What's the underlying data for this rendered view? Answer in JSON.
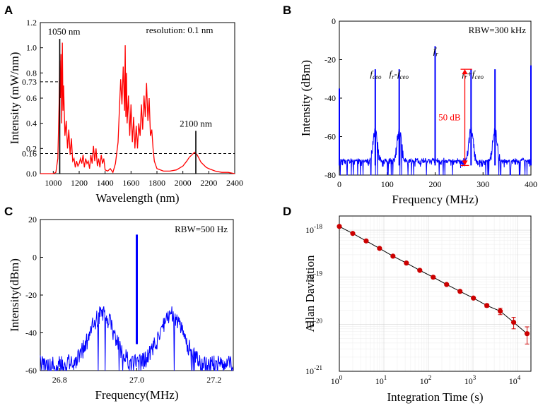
{
  "chart_data": [
    {
      "panel": "A",
      "type": "line",
      "xlabel": "Wavelength (nm)",
      "ylabel": "Intensity (mW/nm)",
      "xlim": [
        900,
        2400
      ],
      "ylim": [
        0,
        1.2
      ],
      "xticks": [
        1000,
        1200,
        1400,
        1600,
        1800,
        2000,
        2200,
        2400
      ],
      "xtick_labels": [
        "1000",
        "1200",
        "1400",
        "1600",
        "1800",
        "2000",
        "2200",
        "2400"
      ],
      "yticks": [
        0.0,
        0.2,
        0.4,
        0.6,
        0.8,
        1.0,
        1.2
      ],
      "ytick_labels": [
        "0.0",
        "0.2",
        "0.4",
        "0.6",
        "0.8",
        "1.0",
        "1.2"
      ],
      "extra_yticks": [
        0.16,
        0.73
      ],
      "extra_ytick_labels": [
        "0.16",
        "0.73"
      ],
      "series_color": "#ff0000",
      "x": [
        900,
        960,
        1000,
        1020,
        1035,
        1045,
        1050,
        1055,
        1060,
        1065,
        1070,
        1075,
        1080,
        1090,
        1100,
        1110,
        1120,
        1130,
        1140,
        1150,
        1160,
        1170,
        1180,
        1190,
        1200,
        1210,
        1220,
        1230,
        1240,
        1250,
        1260,
        1270,
        1280,
        1290,
        1300,
        1310,
        1320,
        1330,
        1340,
        1350,
        1360,
        1370,
        1380,
        1390,
        1400,
        1420,
        1440,
        1460,
        1480,
        1500,
        1510,
        1520,
        1530,
        1540,
        1550,
        1555,
        1560,
        1565,
        1570,
        1580,
        1590,
        1600,
        1610,
        1620,
        1630,
        1640,
        1650,
        1660,
        1670,
        1680,
        1690,
        1700,
        1710,
        1720,
        1730,
        1740,
        1750,
        1760,
        1770,
        1780,
        1800,
        1850,
        1900,
        1950,
        2000,
        2030,
        2050,
        2070,
        2090,
        2100,
        2110,
        2120,
        2140,
        2160,
        2180,
        2200,
        2250,
        2300,
        2350,
        2400
      ],
      "y": [
        0.0,
        0.0,
        0.0,
        0.01,
        0.12,
        0.55,
        0.9,
        0.6,
        0.95,
        0.4,
        1.04,
        0.5,
        0.7,
        0.3,
        0.42,
        0.2,
        0.35,
        0.15,
        0.28,
        0.1,
        0.12,
        0.05,
        0.1,
        0.06,
        0.08,
        0.12,
        0.08,
        0.15,
        0.05,
        0.12,
        0.08,
        0.1,
        0.04,
        0.15,
        0.08,
        0.22,
        0.1,
        0.2,
        0.06,
        0.12,
        0.05,
        0.15,
        0.08,
        0.12,
        0.03,
        0.02,
        0.04,
        0.01,
        0.08,
        0.25,
        0.5,
        0.75,
        0.55,
        0.85,
        0.5,
        1.02,
        0.45,
        0.8,
        0.4,
        0.62,
        0.3,
        0.55,
        0.25,
        0.45,
        0.2,
        0.38,
        0.2,
        0.4,
        0.3,
        0.55,
        0.35,
        0.62,
        0.45,
        0.72,
        0.42,
        0.6,
        0.3,
        0.35,
        0.2,
        0.1,
        0.04,
        0.02,
        0.02,
        0.03,
        0.06,
        0.1,
        0.13,
        0.15,
        0.17,
        0.16,
        0.15,
        0.13,
        0.09,
        0.07,
        0.05,
        0.04,
        0.02,
        0.01,
        0.01,
        0.0
      ],
      "markers": [
        {
          "x": 1050,
          "y_top": 1.07,
          "label": "1050 nm"
        },
        {
          "x": 2100,
          "y_top": 0.34,
          "label": "2100 nm"
        }
      ],
      "dashed_levels": [
        0.73,
        0.16
      ],
      "annotation": "resolution: 0.1 nm"
    },
    {
      "panel": "B",
      "type": "line",
      "xlabel": "Frequency (MHz)",
      "ylabel": "Intensity (dBm)",
      "xlim": [
        0,
        400
      ],
      "ylim": [
        -80,
        0
      ],
      "xticks": [
        0,
        100,
        200,
        300,
        400
      ],
      "xtick_labels": [
        "0",
        "100",
        "200",
        "300",
        "400"
      ],
      "yticks": [
        -80,
        -60,
        -40,
        -20,
        0
      ],
      "ytick_labels": [
        "-80",
        "-60",
        "-40",
        "-20",
        "0"
      ],
      "series_color": "#0000ff",
      "noise_floor": -75,
      "peaks": [
        {
          "x": 0,
          "y": -35,
          "base_width": 0
        },
        {
          "x": 75,
          "y": -25,
          "base_width": 10
        },
        {
          "x": 125,
          "y": -25,
          "base_width": 10
        },
        {
          "x": 200,
          "y": -13,
          "base_width": 0
        },
        {
          "x": 275,
          "y": -25,
          "base_width": 10
        },
        {
          "x": 325,
          "y": -25,
          "base_width": 10
        },
        {
          "x": 400,
          "y": -23,
          "base_width": 0
        }
      ],
      "labels": {
        "fceo": "f",
        "fceo_sub": "ceo",
        "fr_minus_fceo_a": "f",
        "fr_minus_fceo_a_sub": "r",
        "fr_minus_fceo_op": "-",
        "fr_minus_fceo_b": "f",
        "fr_minus_fceo_b_sub": "ceo",
        "fr": "f",
        "fr_sub": "r",
        "fr_plus_fceo_a": "f",
        "fr_plus_fceo_a_sub": "r",
        "fr_plus_fceo_op": "+",
        "fr_plus_fceo_b": "f",
        "fr_plus_fceo_b_sub": "ceo"
      },
      "arrow": {
        "x": 262,
        "y_top": -25,
        "y_bottom": -75,
        "label": "50 dB",
        "color": "#ff0000"
      },
      "annotation": "RBW=300 kHz"
    },
    {
      "panel": "C",
      "type": "line",
      "xlabel": "Frequency(MHz)",
      "ylabel": "Intensity(dBm)",
      "xlim": [
        26.75,
        27.25
      ],
      "ylim": [
        -60,
        20
      ],
      "xticks": [
        26.8,
        27.0,
        27.2
      ],
      "xtick_labels": [
        "26.8",
        "27.0",
        "27.2"
      ],
      "yticks": [
        -60,
        -40,
        -20,
        0,
        20
      ],
      "ytick_labels": [
        "-60",
        "-40",
        "-20",
        "0",
        "20"
      ],
      "series_color": "#0000ff",
      "noise_floor": -52,
      "carrier": {
        "x": 27.0,
        "y": 12
      },
      "bumps": [
        {
          "x": 26.91,
          "y": -25
        },
        {
          "x": 27.09,
          "y": -26
        }
      ],
      "annotation": "RBW=500 Hz"
    },
    {
      "panel": "D",
      "type": "scatter",
      "xlabel": "Integration Time (s)",
      "ylabel": "Allan Daviation",
      "xscale": "log",
      "yscale": "log",
      "xlim": [
        1,
        20000
      ],
      "ylim": [
        1e-21,
        2e-18
      ],
      "xtick_values": [
        1,
        10,
        100,
        1000,
        10000
      ],
      "xtick_base": [
        "10",
        "10",
        "10",
        "10",
        "10"
      ],
      "xtick_exp": [
        "0",
        "1",
        "2",
        "3",
        "4"
      ],
      "ytick_values": [
        1e-21,
        1e-20,
        1e-19,
        1e-18
      ],
      "ytick_base": [
        "10",
        "10",
        "10",
        "10"
      ],
      "ytick_exp": [
        "-21",
        "-20",
        "-19",
        "-18"
      ],
      "series_color": "#cc0000",
      "x": [
        1,
        2,
        4,
        8,
        16,
        32,
        64,
        128,
        256,
        512,
        1024,
        2048,
        4096,
        8192,
        16384
      ],
      "y": [
        1.2e-18,
        8.5e-19,
        5.9e-19,
        4.1e-19,
        2.8e-19,
        2e-19,
        1.4e-19,
        1e-19,
        7e-20,
        5e-20,
        3.6e-20,
        2.5e-20,
        1.9e-20,
        1.1e-20,
        6.3e-21
      ],
      "err": [
        0,
        0,
        0,
        0,
        0,
        0,
        0,
        0,
        0,
        0,
        1e-21,
        2e-21,
        3e-21,
        3e-21,
        2.5e-21
      ]
    }
  ],
  "panels": {
    "a": "A",
    "b": "B",
    "c": "C",
    "d": "D"
  }
}
